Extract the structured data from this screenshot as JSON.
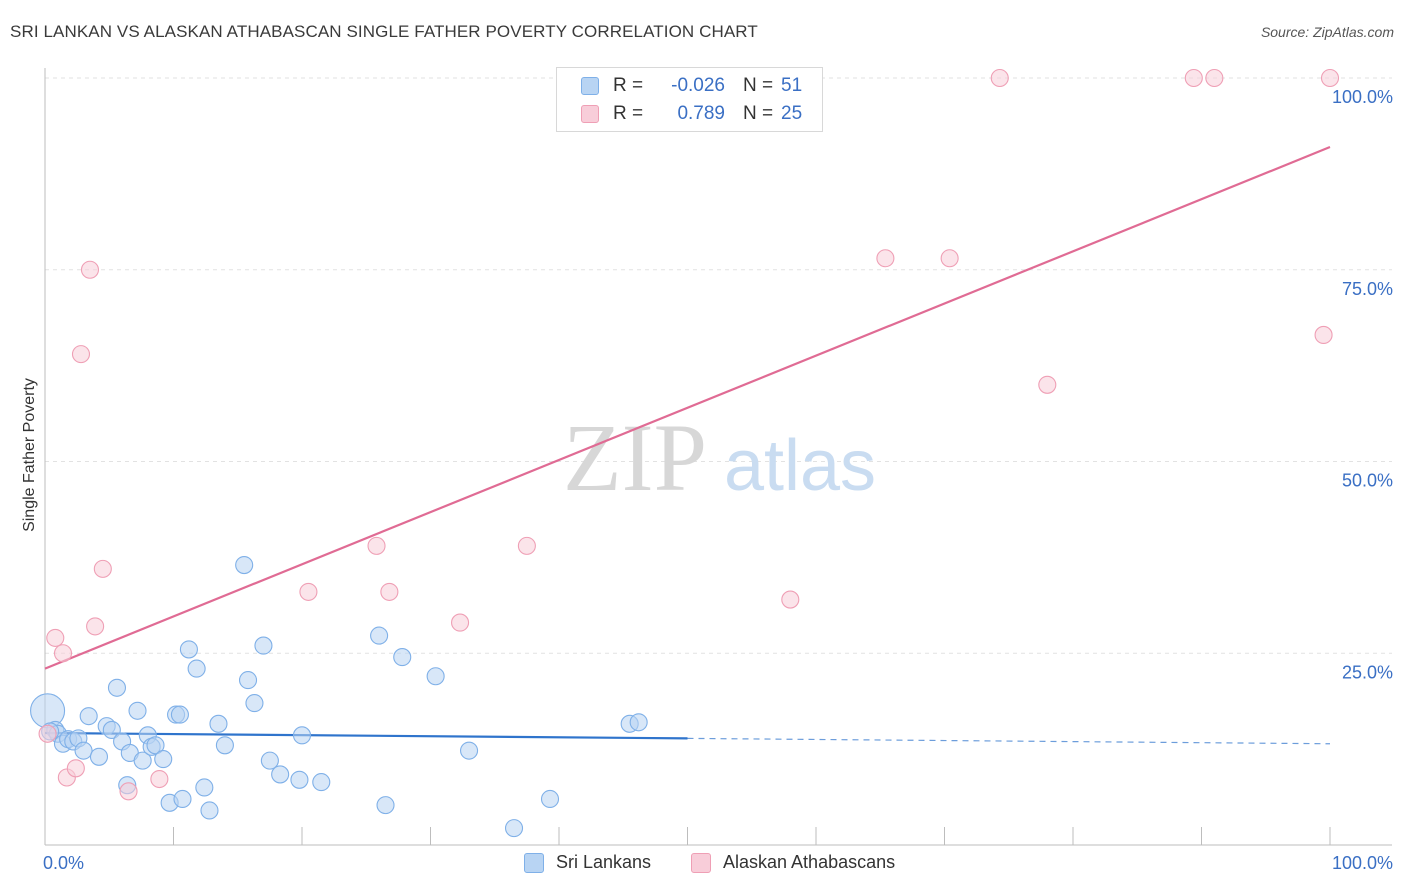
{
  "chart_data": {
    "type": "scatter",
    "title": "SRI LANKAN VS ALASKAN ATHABASCAN SINGLE FATHER POVERTY CORRELATION CHART",
    "source": "Source: ZipAtlas.com",
    "ylabel": "Single Father Poverty",
    "xlim": [
      0,
      100
    ],
    "ylim": [
      0,
      100
    ],
    "x_tick_labels": [
      "0.0%",
      "100.0%"
    ],
    "y_tick_labels": [
      {
        "value": 100,
        "label": "100.0%"
      },
      {
        "value": 75,
        "label": "75.0%"
      },
      {
        "value": 50,
        "label": "50.0%"
      },
      {
        "value": 25,
        "label": "25.0%"
      }
    ],
    "watermark": {
      "part1": "ZIP",
      "part2": "atlas"
    },
    "legend": {
      "r_label": "R =",
      "n_label": "N =",
      "entries": [
        {
          "name": "Sri Lankans",
          "r": "-0.026",
          "n": "51"
        },
        {
          "name": "Alaskan Athabascans",
          "r": "0.789",
          "n": "25"
        }
      ]
    },
    "series": [
      {
        "name": "Sri Lankans",
        "color": "#7fb0e8",
        "fill": "#b8d4f3",
        "line_color": "#2f74cc",
        "trend": {
          "x0": 0,
          "y0": 14.6,
          "x1": 50,
          "y1": 13.9,
          "dash_to_x": 100,
          "dash_to_y": 13.2
        },
        "points": [
          {
            "x": 0.2,
            "y": 17.5,
            "big": true
          },
          {
            "x": 0.8,
            "y": 15.0
          },
          {
            "x": 1.0,
            "y": 14.5
          },
          {
            "x": 1.4,
            "y": 13.2
          },
          {
            "x": 1.8,
            "y": 13.8
          },
          {
            "x": 2.2,
            "y": 13.5
          },
          {
            "x": 2.6,
            "y": 13.9
          },
          {
            "x": 3.0,
            "y": 12.3
          },
          {
            "x": 3.4,
            "y": 16.8
          },
          {
            "x": 4.2,
            "y": 11.5
          },
          {
            "x": 4.8,
            "y": 15.5
          },
          {
            "x": 5.2,
            "y": 15.0
          },
          {
            "x": 5.6,
            "y": 20.5
          },
          {
            "x": 6.0,
            "y": 13.5
          },
          {
            "x": 6.4,
            "y": 7.8
          },
          {
            "x": 6.6,
            "y": 12.0
          },
          {
            "x": 7.2,
            "y": 17.5
          },
          {
            "x": 7.6,
            "y": 11.0
          },
          {
            "x": 8.0,
            "y": 14.3
          },
          {
            "x": 8.3,
            "y": 12.8
          },
          {
            "x": 8.6,
            "y": 13.0
          },
          {
            "x": 9.2,
            "y": 11.2
          },
          {
            "x": 9.7,
            "y": 5.5
          },
          {
            "x": 10.2,
            "y": 17.0
          },
          {
            "x": 10.5,
            "y": 17.0
          },
          {
            "x": 10.7,
            "y": 6.0
          },
          {
            "x": 11.2,
            "y": 25.5
          },
          {
            "x": 11.8,
            "y": 23.0
          },
          {
            "x": 12.4,
            "y": 7.5
          },
          {
            "x": 12.8,
            "y": 4.5
          },
          {
            "x": 13.5,
            "y": 15.8
          },
          {
            "x": 14.0,
            "y": 13.0
          },
          {
            "x": 15.5,
            "y": 36.5
          },
          {
            "x": 15.8,
            "y": 21.5
          },
          {
            "x": 16.3,
            "y": 18.5
          },
          {
            "x": 17.0,
            "y": 26.0
          },
          {
            "x": 17.5,
            "y": 11.0
          },
          {
            "x": 18.3,
            "y": 9.2
          },
          {
            "x": 19.8,
            "y": 8.5
          },
          {
            "x": 20.0,
            "y": 14.3
          },
          {
            "x": 21.5,
            "y": 8.2
          },
          {
            "x": 26.0,
            "y": 27.3
          },
          {
            "x": 26.5,
            "y": 5.2
          },
          {
            "x": 27.8,
            "y": 24.5
          },
          {
            "x": 30.4,
            "y": 22.0
          },
          {
            "x": 33.0,
            "y": 12.3
          },
          {
            "x": 36.5,
            "y": 2.2
          },
          {
            "x": 39.3,
            "y": 6.0
          },
          {
            "x": 45.5,
            "y": 15.8
          },
          {
            "x": 46.2,
            "y": 16.0
          },
          {
            "x": 0.4,
            "y": 14.8
          }
        ]
      },
      {
        "name": "Alaskan Athabascans",
        "color": "#ef9fb5",
        "fill": "#f8cdd9",
        "line_color": "#e06b94",
        "trend": {
          "x0": 0,
          "y0": 23.0,
          "x1": 100,
          "y1": 91.0
        },
        "points": [
          {
            "x": 0.2,
            "y": 14.5
          },
          {
            "x": 0.8,
            "y": 27.0
          },
          {
            "x": 1.4,
            "y": 25.0
          },
          {
            "x": 1.7,
            "y": 8.8
          },
          {
            "x": 2.4,
            "y": 10.0
          },
          {
            "x": 2.8,
            "y": 64.0
          },
          {
            "x": 3.5,
            "y": 75.0
          },
          {
            "x": 3.9,
            "y": 28.5
          },
          {
            "x": 4.5,
            "y": 36.0
          },
          {
            "x": 6.5,
            "y": 7.0
          },
          {
            "x": 8.9,
            "y": 8.6
          },
          {
            "x": 20.5,
            "y": 33.0
          },
          {
            "x": 25.8,
            "y": 39.0
          },
          {
            "x": 26.8,
            "y": 33.0
          },
          {
            "x": 32.3,
            "y": 29.0
          },
          {
            "x": 37.5,
            "y": 39.0
          },
          {
            "x": 58.0,
            "y": 32.0
          },
          {
            "x": 65.4,
            "y": 76.5
          },
          {
            "x": 70.4,
            "y": 76.5
          },
          {
            "x": 74.3,
            "y": 100.0
          },
          {
            "x": 78.0,
            "y": 60.0
          },
          {
            "x": 89.4,
            "y": 100.0
          },
          {
            "x": 91.0,
            "y": 100.0
          },
          {
            "x": 100.0,
            "y": 100.0
          },
          {
            "x": 99.5,
            "y": 66.5
          }
        ]
      }
    ]
  }
}
